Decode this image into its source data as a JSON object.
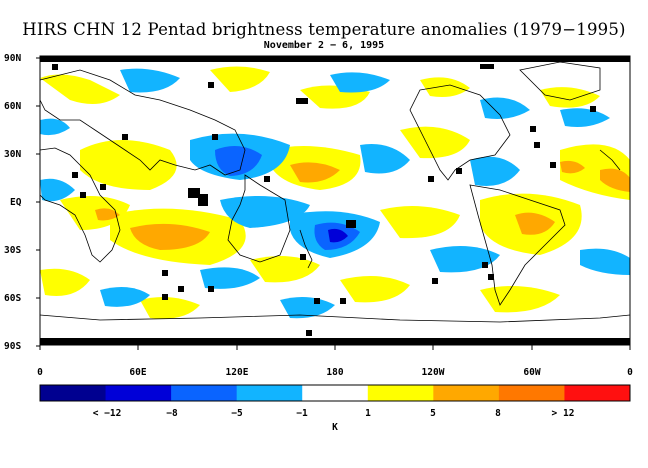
{
  "title": "HIRS CHN 12 Pentad brightness temperature anomalies (1979−1995)",
  "subtitle": "November 2 − 6, 1995",
  "lat_labels": [
    "90N",
    "60N",
    "30N",
    "EQ",
    "30S",
    "60S",
    "90S"
  ],
  "lon_labels": [
    "0",
    "60E",
    "120E",
    "180",
    "120W",
    "60W",
    "0"
  ],
  "colorbar": {
    "labels": [
      "< −12",
      "−8",
      "−5",
      "−1",
      "1",
      "5",
      "8",
      "> 12"
    ],
    "unit": "K",
    "colors": [
      "#000090",
      "#0000d8",
      "#0a64ff",
      "#12b4ff",
      "#ffffff",
      "#ffff00",
      "#ffa800",
      "#ff7800",
      "#ff1010"
    ]
  }
}
